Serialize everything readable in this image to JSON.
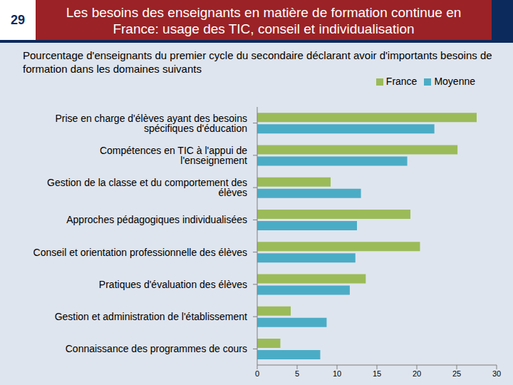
{
  "chart_data": {
    "type": "bar",
    "orientation": "horizontal",
    "title": "Les besoins des enseignants en matière de formation continue en France: usage des TIC, conseil et individualisation",
    "subtitle": "Pourcentage d'enseignants du premier cycle du secondaire déclarant avoir d'importants besoins de formation dans les domaines suivants",
    "annotations": [
      "29"
    ],
    "categories": [
      "Prise en charge d'élèves ayant des besoins spécifiques d'éducation",
      "Compétences en TIC à l'appui de l'enseignement",
      "Gestion de la classe et du comportement des élèves",
      "Approches pédagogiques individualisées",
      "Conseil et orientation professionnelle des élèves",
      "Pratiques d'évaluation des élèves",
      "Gestion et administration de l'établissement",
      "Connaissance des programmes de cours"
    ],
    "series": [
      {
        "name": "France",
        "color": "#9bbb59",
        "values": [
          27.5,
          25.1,
          9.2,
          19.2,
          20.4,
          13.6,
          4.2,
          2.9
        ]
      },
      {
        "name": "Moyenne",
        "color": "#4bacc6",
        "values": [
          22.2,
          18.8,
          13.0,
          12.5,
          12.3,
          11.6,
          8.7,
          7.9
        ]
      }
    ],
    "xlim": [
      0,
      30
    ],
    "xticks": [
      0,
      5,
      10,
      15,
      20,
      25,
      30
    ],
    "legend": "top right",
    "grid": false
  }
}
